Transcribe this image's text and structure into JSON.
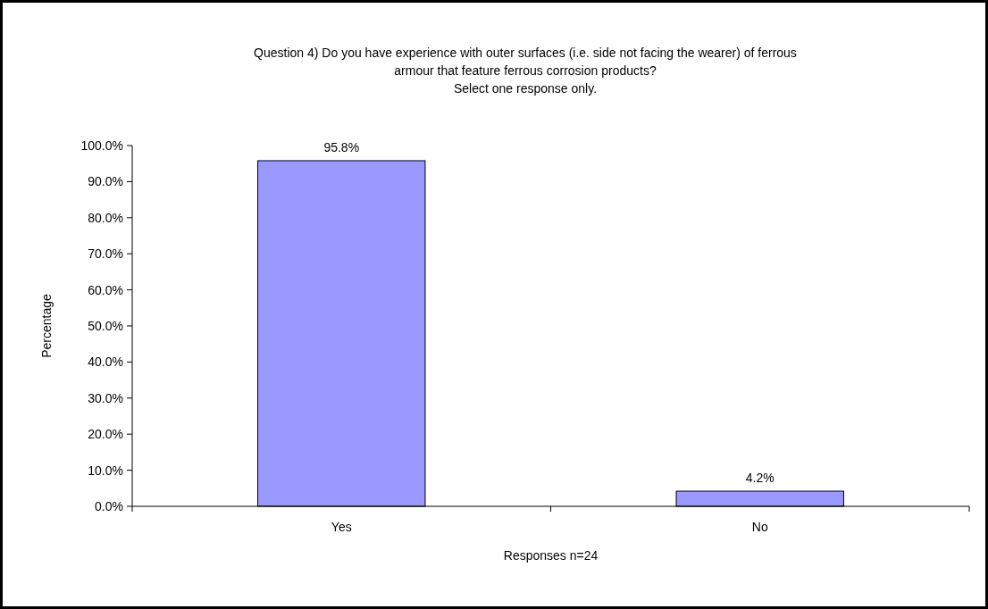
{
  "chart_data": {
    "type": "bar",
    "title": "Question 4) Do you have experience with outer surfaces (i.e. side not facing the wearer) of ferrous\narmour that feature ferrous corrosion products?",
    "subtitle": "Select one response only.",
    "xlabel": "Responses n=24",
    "ylabel": "Percentage",
    "categories": [
      "Yes",
      "No"
    ],
    "values": [
      95.8,
      4.2
    ],
    "value_labels": [
      "95.8%",
      "4.2%"
    ],
    "color": "#9999ff",
    "ylim": [
      0,
      100
    ],
    "yticks": [
      {
        "value": 0,
        "label": "0.0%"
      },
      {
        "value": 10,
        "label": "10.0%"
      },
      {
        "value": 20,
        "label": "20.0%"
      },
      {
        "value": 30,
        "label": "30.0%"
      },
      {
        "value": 40,
        "label": "40.0%"
      },
      {
        "value": 50,
        "label": "50.0%"
      },
      {
        "value": 60,
        "label": "60.0%"
      },
      {
        "value": 70,
        "label": "70.0%"
      },
      {
        "value": 80,
        "label": "80.0%"
      },
      {
        "value": 90,
        "label": "90.0%"
      },
      {
        "value": 100,
        "label": "100.0%"
      }
    ],
    "grid": false
  }
}
